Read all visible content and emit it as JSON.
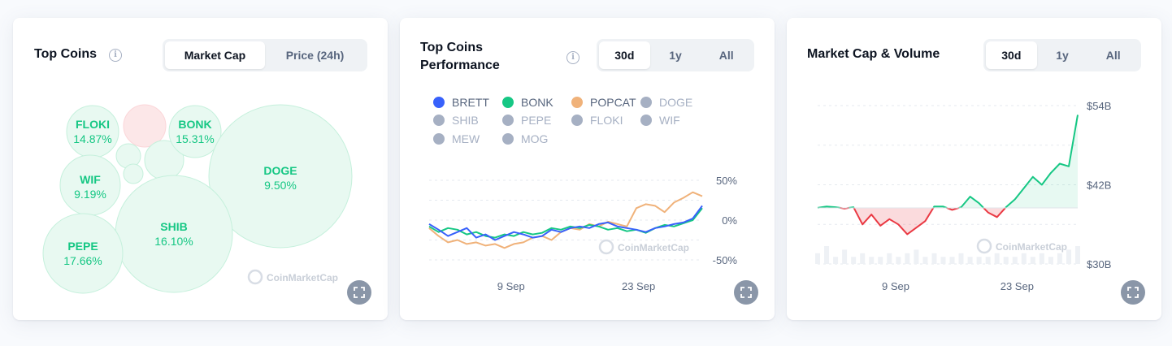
{
  "cards": {
    "top_coins": {
      "title": "Top Coins",
      "tabs": [
        "Market Cap",
        "Price (24h)"
      ],
      "active_tab": 0
    },
    "performance": {
      "title_line1": "Top Coins",
      "title_line2": "Performance",
      "tabs": [
        "30d",
        "1y",
        "All"
      ],
      "active_tab": 0
    },
    "market_cap_volume": {
      "title": "Market Cap & Volume",
      "tabs": [
        "30d",
        "1y",
        "All"
      ],
      "active_tab": 0
    }
  },
  "watermark": "CoinMarketCap",
  "colors": {
    "positive": "#16c784",
    "negative": "#ea3943",
    "brett": "#3861fb",
    "bonk": "#16c784",
    "popcat": "#f0b27a",
    "muted": "#a6b0c3"
  },
  "chart_data": [
    {
      "type": "bubble",
      "bubbles": [
        {
          "name": "FLOKI",
          "value": "14.87%",
          "change": 14.87
        },
        {
          "name": "BONK",
          "value": "15.31%",
          "change": 15.31
        },
        {
          "name": "WIF",
          "value": "9.19%",
          "change": 9.19
        },
        {
          "name": "DOGE",
          "value": "9.50%",
          "change": 9.5
        },
        {
          "name": "SHIB",
          "value": "16.10%",
          "change": 16.1
        },
        {
          "name": "PEPE",
          "value": "17.66%",
          "change": 17.66
        }
      ]
    },
    {
      "type": "line",
      "legend": [
        {
          "name": "BRETT",
          "color": "#3861fb",
          "active": true
        },
        {
          "name": "BONK",
          "color": "#16c784",
          "active": true
        },
        {
          "name": "POPCAT",
          "color": "#f0b27a",
          "active": true
        },
        {
          "name": "DOGE",
          "color": "#a6b0c3",
          "active": false
        },
        {
          "name": "SHIB",
          "color": "#a6b0c3",
          "active": false
        },
        {
          "name": "PEPE",
          "color": "#a6b0c3",
          "active": false
        },
        {
          "name": "FLOKI",
          "color": "#a6b0c3",
          "active": false
        },
        {
          "name": "WIF",
          "color": "#a6b0c3",
          "active": false
        },
        {
          "name": "MEW",
          "color": "#a6b0c3",
          "active": false
        },
        {
          "name": "MOG",
          "color": "#a6b0c3",
          "active": false
        }
      ],
      "x_ticks": [
        "9 Sep",
        "23 Sep"
      ],
      "x_tick_days": [
        9,
        23
      ],
      "x_range": [
        0,
        30
      ],
      "y_ticks": [
        "50%",
        "0%",
        "-50%"
      ],
      "y_tick_values": [
        50,
        0,
        -50
      ],
      "ylim": [
        -50,
        50
      ],
      "series": [
        {
          "name": "BRETT",
          "values": [
            -5,
            -12,
            -20,
            -15,
            -10,
            -22,
            -18,
            -25,
            -20,
            -15,
            -18,
            -22,
            -20,
            -12,
            -15,
            -10,
            -8,
            -10,
            -5,
            -3,
            -8,
            -10,
            -12,
            -15,
            -10,
            -8,
            -5,
            -3,
            2,
            18
          ]
        },
        {
          "name": "BONK",
          "values": [
            -8,
            -15,
            -10,
            -12,
            -18,
            -15,
            -20,
            -22,
            -18,
            -20,
            -15,
            -18,
            -16,
            -10,
            -12,
            -8,
            -10,
            -6,
            -8,
            -12,
            -10,
            -14,
            -12,
            -16,
            -10,
            -6,
            -8,
            -4,
            0,
            15
          ]
        },
        {
          "name": "POPCAT",
          "values": [
            -10,
            -20,
            -28,
            -25,
            -30,
            -28,
            -32,
            -30,
            -35,
            -30,
            -28,
            -22,
            -20,
            -25,
            -15,
            -10,
            -12,
            -5,
            -8,
            -2,
            -5,
            -8,
            15,
            20,
            18,
            10,
            22,
            28,
            35,
            30
          ]
        }
      ]
    },
    {
      "type": "area",
      "x_ticks": [
        "9 Sep",
        "23 Sep"
      ],
      "x_tick_days": [
        9,
        23
      ],
      "x_range": [
        0,
        30
      ],
      "y_ticks": [
        "$54B",
        "$42B",
        "$30B"
      ],
      "y_tick_values": [
        54,
        42,
        30
      ],
      "ylim": [
        30,
        54
      ],
      "baseline": 38.5,
      "values": [
        38.5,
        38.7,
        38.6,
        38.4,
        38.6,
        36.0,
        37.5,
        35.8,
        36.8,
        36.0,
        34.5,
        35.5,
        36.5,
        38.7,
        38.7,
        38.2,
        38.6,
        40.2,
        39.2,
        37.8,
        37.1,
        38.6,
        39.8,
        41.5,
        43.2,
        42.0,
        43.8,
        45.2,
        44.8,
        52.6
      ],
      "volumes": [
        3,
        5,
        2,
        4,
        2,
        3,
        2,
        2,
        3,
        2,
        3,
        4,
        2,
        3,
        2,
        2,
        3,
        2,
        2,
        2,
        3,
        2,
        2,
        3,
        2,
        3,
        2,
        3,
        4,
        5
      ]
    }
  ]
}
